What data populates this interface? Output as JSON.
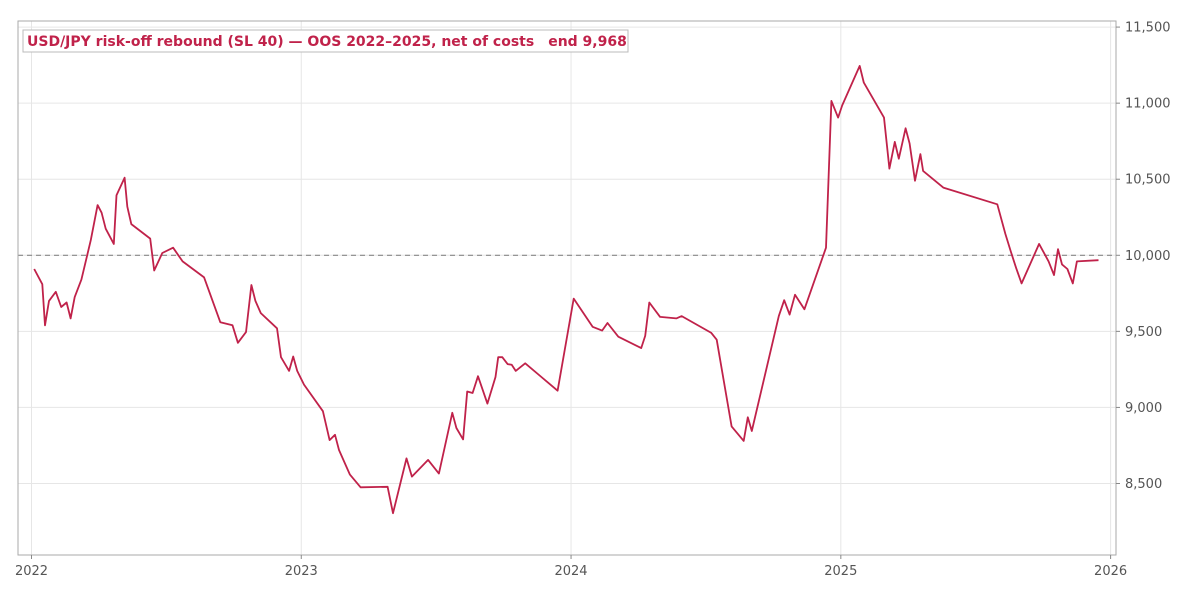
{
  "chart_data": {
    "type": "line",
    "title": "USD/JPY risk-off rebound (SL 40) — OOS 2022–2025, net of costs",
    "end_label": "end 9,968",
    "xlabel": "",
    "ylabel": "",
    "xlim": [
      2021.95,
      2026.02
    ],
    "ylim": [
      8030,
      11540
    ],
    "x_ticks": [
      2022,
      2023,
      2024,
      2025,
      2026
    ],
    "x_tick_labels": [
      "2022",
      "2023",
      "2024",
      "2025",
      "2026"
    ],
    "y_ticks": [
      8500,
      9000,
      9500,
      10000,
      10500,
      11000,
      11500
    ],
    "y_tick_labels": [
      "8,500",
      "9,000",
      "9,500",
      "10,000",
      "10,500",
      "11,000",
      "11,500"
    ],
    "y_axis_side": "right",
    "grid": true,
    "reference_line": {
      "y": 10000,
      "style": "dashed",
      "color": "#888888"
    },
    "line_color": "#c0224a",
    "series": [
      {
        "x": [
          2022.01,
          2022.04,
          2022.05,
          2022.065,
          2022.09,
          2022.11,
          2022.13,
          2022.145,
          2022.16,
          2022.185,
          2022.22,
          2022.245,
          2022.26,
          2022.275,
          2022.305,
          2022.315,
          2022.345,
          2022.355,
          2022.37,
          2022.44,
          2022.455,
          2022.485,
          2022.525,
          2022.56,
          2022.64,
          2022.7,
          2022.745,
          2022.765,
          2022.795,
          2022.815,
          2022.83,
          2022.85,
          2022.91,
          2022.925,
          2022.955,
          2022.97,
          2022.985,
          2023.01,
          2023.08,
          2023.105,
          2023.125,
          2023.14,
          2023.18,
          2023.22,
          2023.32,
          2023.34,
          2023.39,
          2023.41,
          2023.47,
          2023.51,
          2023.56,
          2023.575,
          2023.6,
          2023.615,
          2023.635,
          2023.655,
          2023.69,
          2023.72,
          2023.73,
          2023.745,
          2023.765,
          2023.78,
          2023.795,
          2023.83,
          2023.89,
          2023.95,
          2024.01,
          2024.08,
          2024.115,
          2024.135,
          2024.175,
          2024.26,
          2024.275,
          2024.29,
          2024.33,
          2024.39,
          2024.41,
          2024.52,
          2024.54,
          2024.595,
          2024.64,
          2024.655,
          2024.67,
          2024.77,
          2024.79,
          2024.81,
          2024.83,
          2024.865,
          2024.945,
          2024.965,
          2024.99,
          2025.005,
          2025.07,
          2025.085,
          2025.16,
          2025.18,
          2025.2,
          2025.215,
          2025.24,
          2025.255,
          2025.275,
          2025.295,
          2025.305,
          2025.38,
          2025.58,
          2025.61,
          2025.63,
          2025.65,
          2025.67,
          2025.735,
          2025.77,
          2025.79,
          2025.805,
          2025.82,
          2025.84,
          2025.86,
          2025.875,
          2025.955
        ],
        "y": [
          9910,
          9810,
          9540,
          9700,
          9760,
          9660,
          9690,
          9585,
          9725,
          9840,
          10100,
          10330,
          10280,
          10175,
          10075,
          10395,
          10510,
          10320,
          10205,
          10110,
          9900,
          10015,
          10050,
          9960,
          9855,
          9560,
          9540,
          9425,
          9495,
          9805,
          9700,
          9620,
          9520,
          9330,
          9240,
          9335,
          9240,
          9150,
          8975,
          8785,
          8820,
          8720,
          8560,
          8475,
          8478,
          8305,
          8665,
          8545,
          8655,
          8565,
          8965,
          8865,
          8790,
          9105,
          9095,
          9205,
          9025,
          9200,
          9330,
          9330,
          9285,
          9280,
          9240,
          9290,
          9200,
          9110,
          9715,
          9530,
          9505,
          9555,
          9465,
          9390,
          9470,
          9690,
          9595,
          9585,
          9600,
          9490,
          9445,
          8875,
          8780,
          8935,
          8845,
          9600,
          9705,
          9610,
          9740,
          9645,
          10050,
          11015,
          10905,
          10985,
          11245,
          11135,
          10905,
          10570,
          10745,
          10635,
          10835,
          10735,
          10490,
          10665,
          10555,
          10445,
          10335,
          10140,
          10025,
          9915,
          9815,
          10075,
          9960,
          9870,
          10040,
          9940,
          9910,
          9815,
          9960,
          9968
        ]
      }
    ]
  }
}
